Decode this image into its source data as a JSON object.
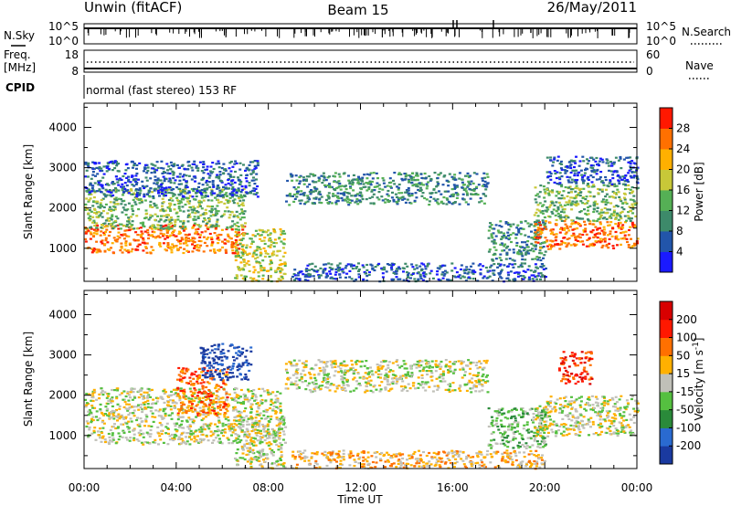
{
  "header": {
    "station": "Unwin (fitACF)",
    "beam": "Beam 15",
    "date": "26/May/2011"
  },
  "status_panels": {
    "nsky_label": "N.Sky",
    "nsky_ticks": [
      "10^5",
      "10^0"
    ],
    "nsearch_label": "N.Search",
    "nsearch_ticks": [
      "10^5",
      "10^0"
    ],
    "freq_label_lines": [
      "Freq.",
      "[MHz]"
    ],
    "freq_ticks": [
      "18",
      "8"
    ],
    "nave_label": "Nave",
    "nave_ticks": [
      "60",
      "0"
    ],
    "cpid_label": "CPID",
    "cpid_text": "normal (fast stereo) 153 RF"
  },
  "chart_data": [
    {
      "type": "heatmap",
      "name": "Power",
      "ylabel": "Slant Range [km]",
      "ylim": [
        180,
        4600
      ],
      "yticks": [
        "1000",
        "2000",
        "3000",
        "4000"
      ],
      "xlabel": "Time UT",
      "xlim_hours": [
        0,
        24
      ],
      "xticks": [
        "00:00",
        "04:00",
        "08:00",
        "12:00",
        "16:00",
        "20:00",
        "00:00"
      ],
      "colorbar": {
        "label": "Power [dB]",
        "ticks": [
          "4",
          "8",
          "12",
          "16",
          "20",
          "24",
          "28"
        ],
        "colors": [
          "#1a1aff",
          "#2255aa",
          "#3d8a6a",
          "#55b055",
          "#c8c838",
          "#ffb000",
          "#ff7000",
          "#ff1800"
        ]
      },
      "regions": [
        {
          "t0": 0.0,
          "t1": 7.0,
          "r0": 900,
          "r1": 1600,
          "level": 6
        },
        {
          "t0": 0.0,
          "t1": 7.0,
          "r0": 1500,
          "r1": 2500,
          "level": 3
        },
        {
          "t0": 0.0,
          "t1": 7.5,
          "r0": 2300,
          "r1": 3200,
          "level": 1
        },
        {
          "t0": 6.5,
          "t1": 8.7,
          "r0": 200,
          "r1": 1500,
          "level": 4
        },
        {
          "t0": 8.7,
          "t1": 17.5,
          "r0": 2100,
          "r1": 2900,
          "level": 2
        },
        {
          "t0": 17.5,
          "t1": 20.0,
          "r0": 700,
          "r1": 1700,
          "level": 2
        },
        {
          "t0": 19.5,
          "t1": 24.0,
          "r0": 1000,
          "r1": 1700,
          "level": 6
        },
        {
          "t0": 19.5,
          "t1": 24.0,
          "r0": 1700,
          "r1": 2600,
          "level": 3
        },
        {
          "t0": 20.0,
          "t1": 24.0,
          "r0": 2600,
          "r1": 3300,
          "level": 1
        },
        {
          "t0": 9.0,
          "t1": 20.0,
          "r0": 200,
          "r1": 650,
          "level": 1
        }
      ]
    },
    {
      "type": "heatmap",
      "name": "Velocity",
      "ylabel": "Slant Range [km]",
      "ylim": [
        180,
        4600
      ],
      "yticks": [
        "1000",
        "2000",
        "3000",
        "4000"
      ],
      "xlabel": "Time UT",
      "xlim_hours": [
        0,
        24
      ],
      "xticks": [
        "00:00",
        "04:00",
        "08:00",
        "12:00",
        "16:00",
        "20:00",
        "00:00"
      ],
      "colorbar": {
        "label": "Velocity [m s",
        "label_superscript": "-1",
        "label_close": "]",
        "ticks": [
          "200",
          "100",
          "50",
          "15",
          "-15",
          "-50",
          "-100",
          "-200"
        ],
        "colors": [
          "#1a3aa0",
          "#2a6ad0",
          "#2a8a3a",
          "#55c040",
          "#c0c0b8",
          "#ffb000",
          "#ff7000",
          "#ff1800",
          "#d80000"
        ]
      },
      "regions": [
        {
          "t0": 0.0,
          "t1": 8.5,
          "r0": 800,
          "r1": 2200,
          "level": 4
        },
        {
          "t0": 4.0,
          "t1": 6.2,
          "r0": 1500,
          "r1": 2700,
          "level": 6
        },
        {
          "t0": 5.0,
          "t1": 7.2,
          "r0": 2400,
          "r1": 3300,
          "level": 0
        },
        {
          "t0": 6.5,
          "t1": 8.7,
          "r0": 200,
          "r1": 1500,
          "level": 4
        },
        {
          "t0": 8.7,
          "t1": 17.5,
          "r0": 2100,
          "r1": 2900,
          "level": 4
        },
        {
          "t0": 17.5,
          "t1": 20.0,
          "r0": 700,
          "r1": 1700,
          "level": 3
        },
        {
          "t0": 19.5,
          "t1": 24.0,
          "r0": 1000,
          "r1": 2000,
          "level": 4
        },
        {
          "t0": 20.5,
          "t1": 22.0,
          "r0": 2300,
          "r1": 3100,
          "level": 7
        },
        {
          "t0": 9.0,
          "t1": 20.0,
          "r0": 200,
          "r1": 650,
          "level": 5
        }
      ]
    }
  ]
}
